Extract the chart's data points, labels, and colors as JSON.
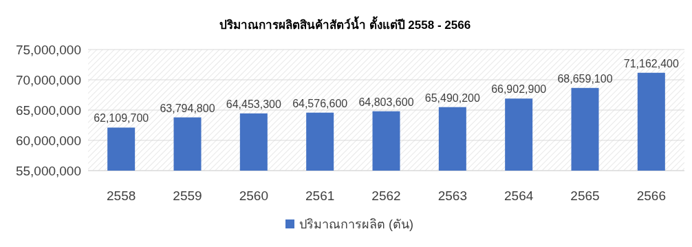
{
  "chart_data": {
    "type": "bar",
    "title": "ปริมาณการผลิตสินค้าสัตว์น้ำ ตั้งแต่ปี 2558 - 2566",
    "categories": [
      "2558",
      "2559",
      "2560",
      "2561",
      "2562",
      "2563",
      "2564",
      "2565",
      "2566"
    ],
    "series": [
      {
        "name": "ปริมาณการผลิต (ตัน)",
        "color": "#4472c4",
        "values": [
          62109700,
          63794800,
          64453300,
          64576600,
          64803600,
          65490200,
          66902900,
          68659100,
          71162400
        ],
        "value_labels": [
          "62,109,700",
          "63,794,800",
          "64,453,300",
          "64,576,600",
          "64,803,600",
          "65,490,200",
          "66,902,900",
          "68,659,100",
          "71,162,400"
        ]
      }
    ],
    "ylim": [
      55000000,
      75000000
    ],
    "yticks": [
      {
        "value": 55000000,
        "label": "55,000,000"
      },
      {
        "value": 60000000,
        "label": "60,000,000"
      },
      {
        "value": 65000000,
        "label": "65,000,000"
      },
      {
        "value": 70000000,
        "label": "70,000,000"
      },
      {
        "value": 75000000,
        "label": "75,000,000"
      }
    ],
    "grid": "y",
    "legend": "bottom"
  }
}
